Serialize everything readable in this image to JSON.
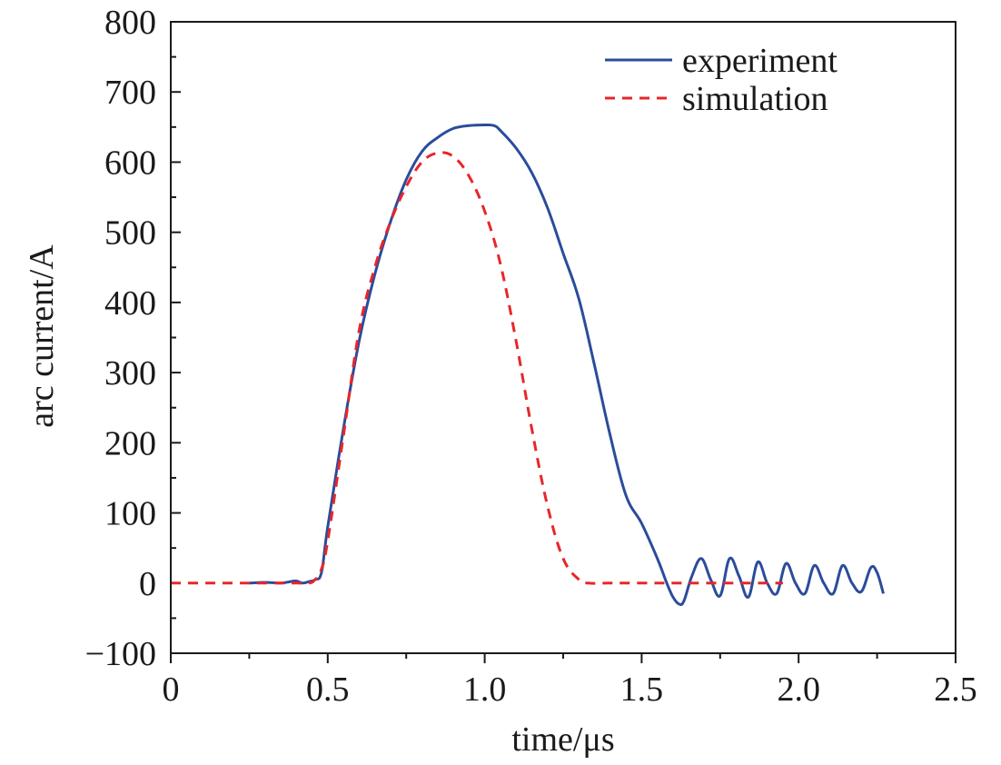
{
  "chart_data": {
    "type": "line",
    "xlabel": "time/μs",
    "ylabel": "arc current/A",
    "xlim": [
      0,
      2.5
    ],
    "ylim": [
      -100,
      800
    ],
    "xticks": [
      0,
      0.5,
      1.0,
      1.5,
      2.0,
      2.5
    ],
    "xtick_labels": [
      "0",
      "0.5",
      "1.0",
      "1.5",
      "2.0",
      "2.5"
    ],
    "yticks": [
      -100,
      0,
      100,
      200,
      300,
      400,
      500,
      600,
      700,
      800
    ],
    "ytick_labels": [
      "−100",
      "0",
      "100",
      "200",
      "300",
      "400",
      "500",
      "600",
      "700",
      "800"
    ],
    "grid": false,
    "legend_position": "top-right",
    "series": [
      {
        "name": "experiment",
        "color": "#2b4c9b",
        "style": "solid",
        "x": [
          0.25,
          0.3,
          0.35,
          0.38,
          0.4,
          0.42,
          0.44,
          0.46,
          0.48,
          0.5,
          0.55,
          0.6,
          0.65,
          0.7,
          0.75,
          0.8,
          0.85,
          0.9,
          0.95,
          1.0,
          1.03,
          1.05,
          1.1,
          1.15,
          1.2,
          1.25,
          1.3,
          1.35,
          1.4,
          1.45,
          1.5,
          1.55,
          1.58,
          1.6,
          1.62,
          1.635,
          1.66,
          1.69,
          1.72,
          1.75,
          1.78,
          1.81,
          1.84,
          1.87,
          1.9,
          1.93,
          1.96,
          1.99,
          2.02,
          2.05,
          2.08,
          2.11,
          2.14,
          2.17,
          2.2,
          2.23,
          2.25,
          2.27
        ],
        "y": [
          0,
          1,
          0,
          2,
          3,
          0,
          2,
          5,
          15,
          80,
          220,
          345,
          440,
          515,
          575,
          615,
          635,
          648,
          652,
          653,
          652,
          645,
          620,
          585,
          535,
          470,
          405,
          310,
          210,
          125,
          85,
          35,
          0,
          -20,
          -30,
          -25,
          10,
          35,
          5,
          -18,
          35,
          10,
          -20,
          30,
          0,
          -15,
          28,
          0,
          -15,
          25,
          0,
          -15,
          25,
          0,
          -12,
          22,
          15,
          -15
        ]
      },
      {
        "name": "simulation",
        "color": "#e8262b",
        "style": "dashed",
        "x": [
          0,
          0.1,
          0.2,
          0.3,
          0.4,
          0.44,
          0.46,
          0.48,
          0.5,
          0.55,
          0.6,
          0.65,
          0.7,
          0.75,
          0.8,
          0.85,
          0.9,
          0.95,
          1.0,
          1.05,
          1.1,
          1.15,
          1.2,
          1.25,
          1.3,
          1.33,
          1.4,
          1.5,
          1.6,
          1.7,
          1.8,
          1.9,
          1.95
        ],
        "y": [
          0,
          0,
          0,
          0,
          0,
          0,
          5,
          20,
          60,
          210,
          360,
          450,
          515,
          565,
          600,
          613,
          608,
          580,
          530,
          455,
          345,
          220,
          110,
          35,
          5,
          0,
          0,
          0,
          0,
          0,
          0,
          0,
          0
        ]
      }
    ]
  }
}
